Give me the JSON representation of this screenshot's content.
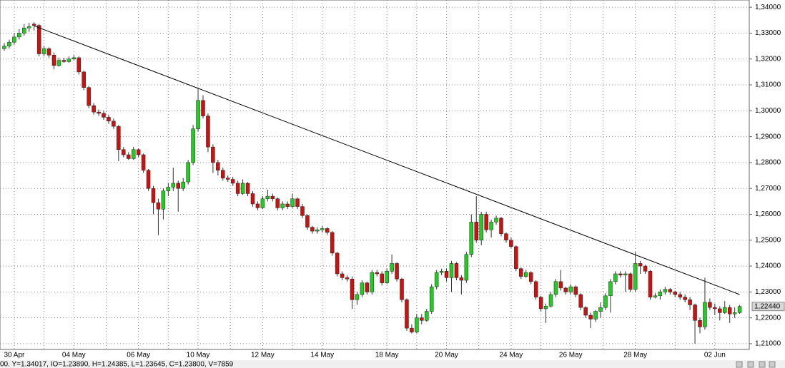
{
  "chart_data": {
    "type": "candlestick",
    "status": "00. Y=1.34017, IO=1.23890, H=1.24385, L=1.23645, C=1.23800, V=7859",
    "ylim": [
      1.2064,
      1.3428
    ],
    "yticks": [
      {
        "value": 1.21,
        "label": "1,21000"
      },
      {
        "value": 1.22,
        "label": "1,22000"
      },
      {
        "value": 1.23,
        "label": "1,23000"
      },
      {
        "value": 1.24,
        "label": "1,24000"
      },
      {
        "value": 1.25,
        "label": "1,25000"
      },
      {
        "value": 1.26,
        "label": "1,26000"
      },
      {
        "value": 1.27,
        "label": "1,27000"
      },
      {
        "value": 1.28,
        "label": "1,28000"
      },
      {
        "value": 1.29,
        "label": "1,29000"
      },
      {
        "value": 1.3,
        "label": "1,30000"
      },
      {
        "value": 1.31,
        "label": "1,31000"
      },
      {
        "value": 1.32,
        "label": "1,32000"
      },
      {
        "value": 1.33,
        "label": "1,33000"
      },
      {
        "value": 1.34,
        "label": "1,34000"
      }
    ],
    "grid": true,
    "up_color": "#22cc22",
    "down_color": "#cc1111",
    "last_price": {
      "value": 1.2244,
      "label": "1,22440"
    },
    "trendline": {
      "x": [
        6,
        148
      ],
      "y": [
        1.3328,
        1.229
      ]
    },
    "categories": [
      null,
      null,
      "30 Apr",
      null,
      null,
      null,
      null,
      null,
      null,
      null,
      null,
      null,
      null,
      null,
      "04 May",
      null,
      null,
      null,
      null,
      null,
      null,
      null,
      null,
      null,
      null,
      null,
      null,
      "06 May",
      null,
      null,
      null,
      null,
      null,
      null,
      null,
      null,
      null,
      null,
      null,
      "10 May",
      null,
      null,
      null,
      null,
      null,
      null,
      null,
      null,
      null,
      null,
      null,
      null,
      "12 May",
      null,
      null,
      null,
      null,
      null,
      null,
      null,
      null,
      null,
      null,
      null,
      "14 May",
      null,
      null,
      null,
      null,
      null,
      null,
      null,
      null,
      null,
      null,
      null,
      null,
      "18 May",
      null,
      null,
      null,
      null,
      null,
      null,
      null,
      null,
      null,
      null,
      null,
      "20 May",
      null,
      null,
      null,
      null,
      null,
      null,
      null,
      null,
      null,
      null,
      null,
      null,
      "24 May",
      null,
      null,
      null,
      null,
      null,
      null,
      null,
      null,
      null,
      null,
      null,
      "26 May",
      null,
      null,
      null,
      null,
      null,
      null,
      null,
      null,
      null,
      null,
      null,
      null,
      "28 May",
      null,
      null,
      null,
      null,
      null,
      null,
      null,
      null,
      null,
      null,
      null,
      null,
      null,
      null,
      null,
      "02 Jun",
      null,
      null,
      null,
      null,
      null
    ],
    "ohlc": [
      [
        1.324,
        1.3262,
        1.3232,
        1.325
      ],
      [
        1.325,
        1.3275,
        1.324,
        1.3265
      ],
      [
        1.3265,
        1.33,
        1.3255,
        1.3285
      ],
      [
        1.3285,
        1.3315,
        1.3275,
        1.33
      ],
      [
        1.33,
        1.3335,
        1.329,
        1.332
      ],
      [
        1.332,
        1.334,
        1.3305,
        1.3325
      ],
      [
        1.3335,
        1.3342,
        1.331,
        1.333
      ],
      [
        1.333,
        1.3335,
        1.321,
        1.322
      ],
      [
        1.322,
        1.325,
        1.321,
        1.324
      ],
      [
        1.324,
        1.3245,
        1.3205,
        1.3215
      ],
      [
        1.3215,
        1.3225,
        1.316,
        1.3175
      ],
      [
        1.3175,
        1.3205,
        1.317,
        1.3195
      ],
      [
        1.3195,
        1.3205,
        1.3185,
        1.319
      ],
      [
        1.319,
        1.321,
        1.3185,
        1.32
      ],
      [
        1.32,
        1.3215,
        1.3195,
        1.3205
      ],
      [
        1.3205,
        1.321,
        1.314,
        1.315
      ],
      [
        1.315,
        1.3155,
        1.308,
        1.309
      ],
      [
        1.309,
        1.3095,
        1.301,
        1.302
      ],
      [
        1.302,
        1.303,
        1.2985,
        1.2995
      ],
      [
        1.2995,
        1.3005,
        1.298,
        1.299
      ],
      [
        1.299,
        1.3,
        1.2965,
        1.2975
      ],
      [
        1.2975,
        1.2985,
        1.295,
        1.296
      ],
      [
        1.296,
        1.297,
        1.293,
        1.294
      ],
      [
        1.294,
        1.2945,
        1.2805,
        1.285
      ],
      [
        1.285,
        1.286,
        1.282,
        1.283
      ],
      [
        1.283,
        1.284,
        1.281,
        1.2815
      ],
      [
        1.2815,
        1.286,
        1.281,
        1.285
      ],
      [
        1.285,
        1.2855,
        1.282,
        1.283
      ],
      [
        1.283,
        1.2835,
        1.276,
        1.277
      ],
      [
        1.277,
        1.2775,
        1.269,
        1.27
      ],
      [
        1.27,
        1.271,
        1.26,
        1.2645
      ],
      [
        1.2645,
        1.266,
        1.252,
        1.262
      ],
      [
        1.262,
        1.27,
        1.258,
        1.269
      ],
      [
        1.269,
        1.272,
        1.267,
        1.2705
      ],
      [
        1.2705,
        1.278,
        1.269,
        1.272
      ],
      [
        1.272,
        1.273,
        1.261,
        1.27
      ],
      [
        1.27,
        1.274,
        1.269,
        1.2725
      ],
      [
        1.2725,
        1.281,
        1.2715,
        1.28
      ],
      [
        1.28,
        1.2945,
        1.279,
        1.293
      ],
      [
        1.293,
        1.309,
        1.292,
        1.304
      ],
      [
        1.304,
        1.306,
        1.297,
        1.298
      ],
      [
        1.298,
        1.299,
        1.284,
        1.286
      ],
      [
        1.286,
        1.287,
        1.276,
        1.28
      ],
      [
        1.28,
        1.281,
        1.275,
        1.277
      ],
      [
        1.277,
        1.278,
        1.273,
        1.274
      ],
      [
        1.274,
        1.275,
        1.2725,
        1.2735
      ],
      [
        1.2735,
        1.2745,
        1.271,
        1.272
      ],
      [
        1.272,
        1.273,
        1.267,
        1.268
      ],
      [
        1.268,
        1.2735,
        1.2675,
        1.272
      ],
      [
        1.272,
        1.2725,
        1.267,
        1.268
      ],
      [
        1.268,
        1.269,
        1.263,
        1.264
      ],
      [
        1.264,
        1.265,
        1.2615,
        1.2625
      ],
      [
        1.2625,
        1.267,
        1.262,
        1.266
      ],
      [
        1.266,
        1.2695,
        1.265,
        1.267
      ],
      [
        1.267,
        1.268,
        1.265,
        1.266
      ],
      [
        1.266,
        1.2665,
        1.2615,
        1.2625
      ],
      [
        1.2625,
        1.265,
        1.2615,
        1.264
      ],
      [
        1.264,
        1.265,
        1.262,
        1.263
      ],
      [
        1.263,
        1.268,
        1.2625,
        1.266
      ],
      [
        1.266,
        1.2665,
        1.262,
        1.263
      ],
      [
        1.263,
        1.264,
        1.2585,
        1.2595
      ],
      [
        1.2595,
        1.26,
        1.254,
        1.255
      ],
      [
        1.255,
        1.2555,
        1.2525,
        1.2535
      ],
      [
        1.2535,
        1.255,
        1.2525,
        1.254
      ],
      [
        1.254,
        1.2555,
        1.253,
        1.2545
      ],
      [
        1.2545,
        1.255,
        1.252,
        1.253
      ],
      [
        1.253,
        1.2535,
        1.244,
        1.245
      ],
      [
        1.245,
        1.2455,
        1.236,
        1.237
      ],
      [
        1.237,
        1.238,
        1.2345,
        1.2355
      ],
      [
        1.2355,
        1.2365,
        1.234,
        1.235
      ],
      [
        1.235,
        1.236,
        1.2235,
        1.227
      ],
      [
        1.227,
        1.23,
        1.225,
        1.229
      ],
      [
        1.229,
        1.2345,
        1.228,
        1.2335
      ],
      [
        1.2335,
        1.234,
        1.229,
        1.23
      ],
      [
        1.23,
        1.2385,
        1.229,
        1.2375
      ],
      [
        1.2375,
        1.2385,
        1.236,
        1.237
      ],
      [
        1.237,
        1.238,
        1.2325,
        1.2335
      ],
      [
        1.2335,
        1.239,
        1.233,
        1.238
      ],
      [
        1.238,
        1.2445,
        1.237,
        1.241
      ],
      [
        1.241,
        1.2415,
        1.234,
        1.235
      ],
      [
        1.235,
        1.2355,
        1.226,
        1.227
      ],
      [
        1.227,
        1.2275,
        1.215,
        1.216
      ],
      [
        1.216,
        1.2175,
        1.214,
        1.2145
      ],
      [
        1.2145,
        1.2215,
        1.214,
        1.22
      ],
      [
        1.22,
        1.2215,
        1.2175,
        1.219
      ],
      [
        1.219,
        1.2235,
        1.2185,
        1.2225
      ],
      [
        1.2225,
        1.233,
        1.2215,
        1.232
      ],
      [
        1.232,
        1.2385,
        1.231,
        1.2375
      ],
      [
        1.2375,
        1.239,
        1.2365,
        1.238
      ],
      [
        1.238,
        1.239,
        1.234,
        1.2355
      ],
      [
        1.2355,
        1.242,
        1.23,
        1.241
      ],
      [
        1.241,
        1.2415,
        1.2345,
        1.2355
      ],
      [
        1.2355,
        1.2365,
        1.229,
        1.2345
      ],
      [
        1.2345,
        1.2455,
        1.2335,
        1.2445
      ],
      [
        1.2445,
        1.26,
        1.2435,
        1.257
      ],
      [
        1.257,
        1.267,
        1.249,
        1.25
      ],
      [
        1.25,
        1.261,
        1.248,
        1.26
      ],
      [
        1.26,
        1.261,
        1.253,
        1.254
      ],
      [
        1.254,
        1.258,
        1.251,
        1.257
      ],
      [
        1.257,
        1.2595,
        1.256,
        1.2585
      ],
      [
        1.2585,
        1.259,
        1.2515,
        1.2525
      ],
      [
        1.2525,
        1.253,
        1.249,
        1.25
      ],
      [
        1.25,
        1.251,
        1.247,
        1.2475
      ],
      [
        1.2475,
        1.248,
        1.238,
        1.239
      ],
      [
        1.239,
        1.2395,
        1.235,
        1.236
      ],
      [
        1.236,
        1.2385,
        1.2355,
        1.2375
      ],
      [
        1.2375,
        1.238,
        1.233,
        1.234
      ],
      [
        1.234,
        1.2345,
        1.227,
        1.228
      ],
      [
        1.228,
        1.2285,
        1.2225,
        1.2235
      ],
      [
        1.2235,
        1.2255,
        1.218,
        1.2245
      ],
      [
        1.2245,
        1.23,
        1.224,
        1.229
      ],
      [
        1.229,
        1.235,
        1.228,
        1.234
      ],
      [
        1.234,
        1.2385,
        1.2305,
        1.2315
      ],
      [
        1.2315,
        1.232,
        1.229,
        1.23
      ],
      [
        1.23,
        1.233,
        1.229,
        1.232
      ],
      [
        1.232,
        1.2325,
        1.228,
        1.229
      ],
      [
        1.229,
        1.2295,
        1.223,
        1.224
      ],
      [
        1.224,
        1.2245,
        1.22,
        1.221
      ],
      [
        1.221,
        1.222,
        1.216,
        1.2195
      ],
      [
        1.2195,
        1.223,
        1.2185,
        1.2225
      ],
      [
        1.2225,
        1.226,
        1.22,
        1.224
      ],
      [
        1.224,
        1.2295,
        1.223,
        1.2285
      ],
      [
        1.2285,
        1.235,
        1.222,
        1.234
      ],
      [
        1.234,
        1.238,
        1.233,
        1.237
      ],
      [
        1.237,
        1.238,
        1.2355,
        1.2365
      ],
      [
        1.2365,
        1.238,
        1.23,
        1.237
      ],
      [
        1.237,
        1.2375,
        1.23,
        1.231
      ],
      [
        1.231,
        1.2455,
        1.23,
        1.241
      ],
      [
        1.241,
        1.242,
        1.237,
        1.24
      ],
      [
        1.24,
        1.2405,
        1.237,
        1.238
      ],
      [
        1.238,
        1.2385,
        1.227,
        1.228
      ],
      [
        1.228,
        1.2295,
        1.2275,
        1.2285
      ],
      [
        1.2285,
        1.231,
        1.227,
        1.23
      ],
      [
        1.23,
        1.232,
        1.229,
        1.231
      ],
      [
        1.231,
        1.2315,
        1.229,
        1.23
      ],
      [
        1.23,
        1.2305,
        1.228,
        1.229
      ],
      [
        1.229,
        1.23,
        1.227,
        1.228
      ],
      [
        1.228,
        1.229,
        1.226,
        1.227
      ],
      [
        1.227,
        1.228,
        1.223,
        1.225
      ],
      [
        1.225,
        1.2255,
        1.21,
        1.219
      ],
      [
        1.219,
        1.22,
        1.214,
        1.2165
      ],
      [
        1.2165,
        1.2355,
        1.2155,
        1.226
      ],
      [
        1.226,
        1.2275,
        1.223,
        1.224
      ],
      [
        1.224,
        1.2255,
        1.221,
        1.2235
      ],
      [
        1.2235,
        1.2245,
        1.219,
        1.222
      ],
      [
        1.222,
        1.2265,
        1.2215,
        1.224
      ],
      [
        1.224,
        1.225,
        1.218,
        1.2215
      ],
      [
        1.2215,
        1.224,
        1.22,
        1.222
      ],
      [
        1.222,
        1.225,
        1.2215,
        1.2244
      ]
    ]
  }
}
